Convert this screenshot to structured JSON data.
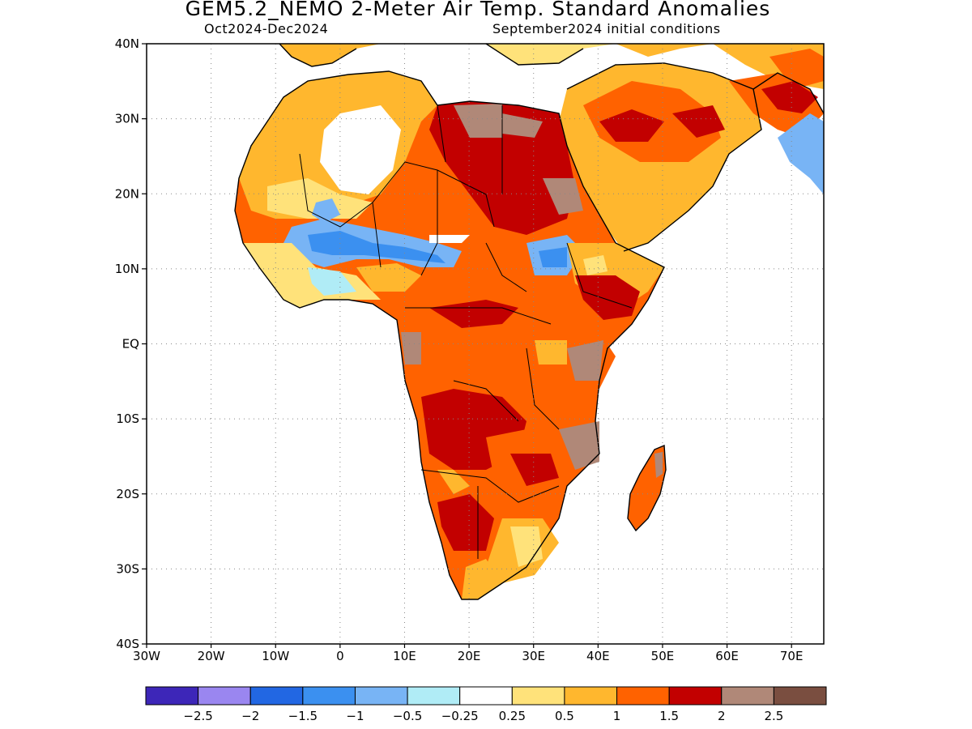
{
  "title": "GEM5.2_NEMO 2-Meter Air Temp. Standard Anomalies",
  "subtitle_left": "Oct2024-Dec2024",
  "subtitle_right": "September2024 initial conditions",
  "map": {
    "region": "Africa",
    "lon_range": [
      -30,
      75
    ],
    "lat_range": [
      -40,
      40
    ],
    "lat_ticks": [
      {
        "value": 40,
        "label": "40N"
      },
      {
        "value": 30,
        "label": "30N"
      },
      {
        "value": 20,
        "label": "20N"
      },
      {
        "value": 10,
        "label": "10N"
      },
      {
        "value": 0,
        "label": "EQ"
      },
      {
        "value": -10,
        "label": "10S"
      },
      {
        "value": -20,
        "label": "20S"
      },
      {
        "value": -30,
        "label": "30S"
      },
      {
        "value": -40,
        "label": "40S"
      }
    ],
    "lon_ticks": [
      {
        "value": -30,
        "label": "30W"
      },
      {
        "value": -20,
        "label": "20W"
      },
      {
        "value": -10,
        "label": "10W"
      },
      {
        "value": 0,
        "label": "0"
      },
      {
        "value": 10,
        "label": "10E"
      },
      {
        "value": 20,
        "label": "20E"
      },
      {
        "value": 30,
        "label": "30E"
      },
      {
        "value": 40,
        "label": "40E"
      },
      {
        "value": 50,
        "label": "50E"
      },
      {
        "value": 60,
        "label": "60E"
      },
      {
        "value": 70,
        "label": "70E"
      }
    ],
    "grid": "dotted"
  },
  "colorbar": {
    "colors": [
      "#3d26b8",
      "#9a86f0",
      "#2267e3",
      "#3b90f0",
      "#78b4f5",
      "#b0ecf6",
      "#ffffff",
      "#ffe27a",
      "#ffb72e",
      "#ff6200",
      "#c20000",
      "#b08878",
      "#7a4e40"
    ],
    "labels": [
      "-2.5",
      "-2",
      "-1.5",
      "-1",
      "-0.5",
      "-0.25",
      "0.25",
      "0.5",
      "1",
      "1.5",
      "2",
      "2.5"
    ]
  }
}
